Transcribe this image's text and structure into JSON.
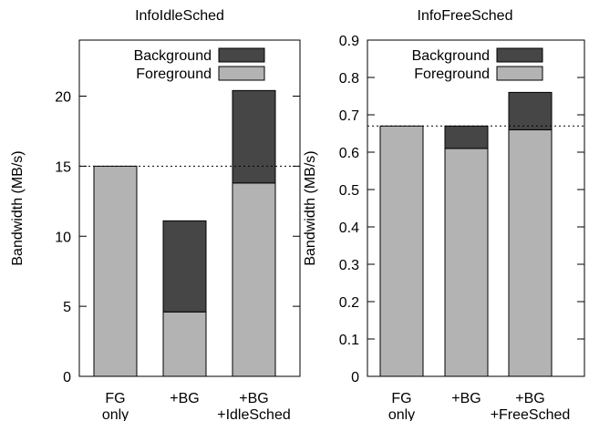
{
  "chart_data": [
    {
      "type": "bar",
      "stacked": true,
      "title": "InfoIdleSched",
      "ylabel": "Bandwidth (MB/s)",
      "ylim": [
        0,
        24
      ],
      "yticks": [
        0,
        5,
        10,
        15,
        20
      ],
      "categories": [
        [
          "FG",
          "only"
        ],
        [
          "+BG"
        ],
        [
          "+BG",
          "+IdleSched"
        ]
      ],
      "series": [
        {
          "name": "Foreground",
          "values": [
            15.0,
            4.6,
            13.8
          ]
        },
        {
          "name": "Background",
          "values": [
            0,
            6.5,
            6.6
          ]
        }
      ],
      "reference_line": 15.0,
      "legend_position": "top-right"
    },
    {
      "type": "bar",
      "stacked": true,
      "title": "InfoFreeSched",
      "ylabel": "Bandwidth (MB/s)",
      "ylim": [
        0,
        0.9
      ],
      "yticks": [
        0,
        0.1,
        0.2,
        0.3,
        0.4,
        0.5,
        0.6,
        0.7,
        0.8,
        0.9
      ],
      "categories": [
        [
          "FG",
          "only"
        ],
        [
          "+BG"
        ],
        [
          "+BG",
          "+FreeSched"
        ]
      ],
      "series": [
        {
          "name": "Foreground",
          "values": [
            0.67,
            0.61,
            0.66
          ]
        },
        {
          "name": "Background",
          "values": [
            0,
            0.06,
            0.1
          ]
        }
      ],
      "reference_line": 0.67,
      "legend_position": "top-right"
    }
  ],
  "colors": {
    "Foreground": "#b3b3b3",
    "Background": "#464646",
    "frame": "#000000"
  }
}
